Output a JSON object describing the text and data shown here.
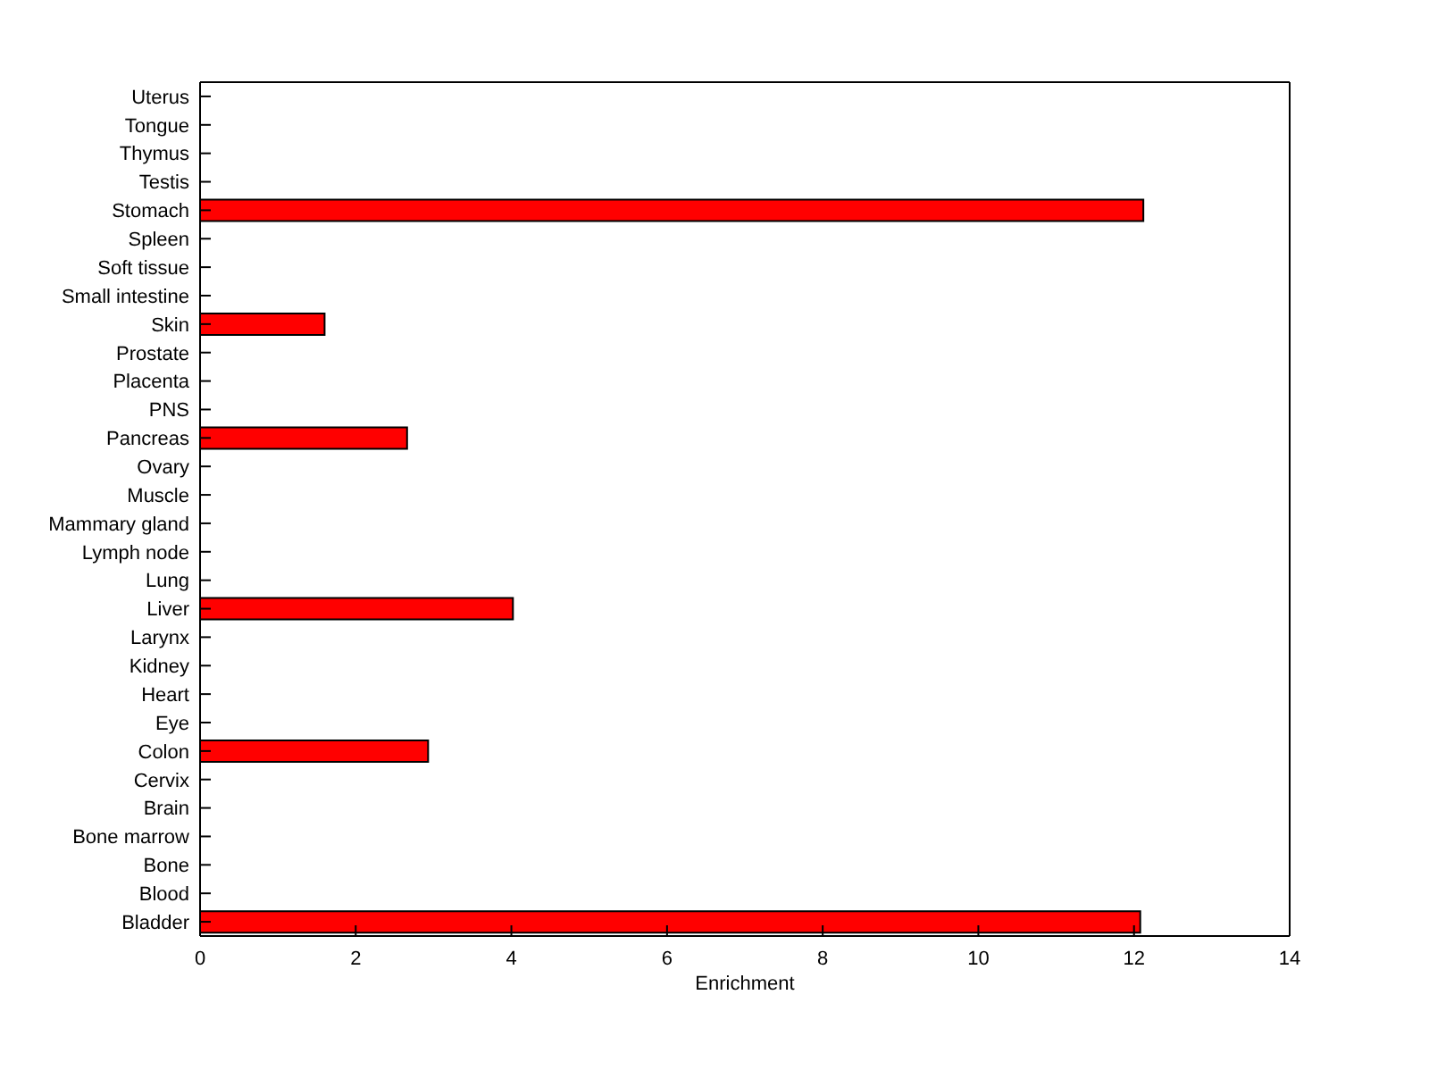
{
  "chart_data": {
    "type": "bar",
    "orientation": "horizontal",
    "xlabel": "Enrichment",
    "categories": [
      "Uterus",
      "Tongue",
      "Thymus",
      "Testis",
      "Stomach",
      "Spleen",
      "Soft tissue",
      "Small intestine",
      "Skin",
      "Prostate",
      "Placenta",
      "PNS",
      "Pancreas",
      "Ovary",
      "Muscle",
      "Mammary gland",
      "Lymph node",
      "Lung",
      "Liver",
      "Larynx",
      "Kidney",
      "Heart",
      "Eye",
      "Colon",
      "Cervix",
      "Brain",
      "Bone marrow",
      "Bone",
      "Blood",
      "Bladder"
    ],
    "values": [
      0,
      0,
      0,
      0,
      12.12,
      0,
      0,
      0,
      1.6,
      0,
      0,
      0,
      2.66,
      0,
      0,
      0,
      0,
      0,
      4.02,
      0,
      0,
      0,
      0,
      2.93,
      0,
      0,
      0,
      0,
      0,
      12.08
    ],
    "color": "#ff0000",
    "xlim": [
      0,
      14
    ],
    "xticks": [
      0,
      2,
      4,
      6,
      8,
      10,
      12,
      14
    ],
    "grid": false,
    "legend": false
  }
}
